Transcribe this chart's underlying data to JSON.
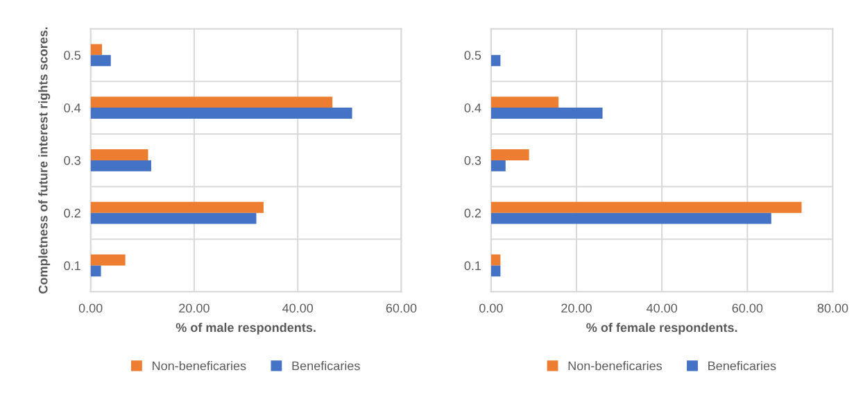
{
  "chart_data": [
    {
      "type": "bar",
      "orientation": "horizontal",
      "ylabel": "Completness of future interest rights scores.",
      "xlabel": "% of male respondents.",
      "categories": [
        "0.5",
        "0.4",
        "0.3",
        "0.2",
        "0.1"
      ],
      "series": [
        {
          "name": "Non-beneficaries",
          "color": "#ed7d31",
          "values": [
            2.2,
            46.7,
            11.1,
            33.4,
            6.7
          ]
        },
        {
          "name": "Beneficaries",
          "color": "#4472c4",
          "values": [
            3.9,
            50.5,
            11.7,
            32.0,
            2.0
          ]
        }
      ],
      "xlim": [
        0,
        60
      ],
      "xticks": [
        {
          "value": 0,
          "label": "0.00"
        },
        {
          "value": 20,
          "label": "20.00"
        },
        {
          "value": 40,
          "label": "40.00"
        },
        {
          "value": 60,
          "label": "60.00"
        }
      ],
      "grid": true,
      "legend": "bottom"
    },
    {
      "type": "bar",
      "orientation": "horizontal",
      "xlabel": "% of female respondents.",
      "categories": [
        "0.5",
        "0.4",
        "0.3",
        "0.2",
        "0.1"
      ],
      "series": [
        {
          "name": "Non-beneficaries",
          "color": "#ed7d31",
          "values": [
            0,
            15.8,
            8.9,
            72.7,
            2.2
          ]
        },
        {
          "name": "Beneficaries",
          "color": "#4472c4",
          "values": [
            2.2,
            26.1,
            3.4,
            65.6,
            2.2
          ]
        }
      ],
      "xlim": [
        0,
        80
      ],
      "xticks": [
        {
          "value": 0,
          "label": "0.00"
        },
        {
          "value": 20,
          "label": "20.00"
        },
        {
          "value": 40,
          "label": "40.00"
        },
        {
          "value": 60,
          "label": "60.00"
        },
        {
          "value": 80,
          "label": "80.00"
        }
      ],
      "grid": true,
      "legend": "bottom"
    }
  ]
}
